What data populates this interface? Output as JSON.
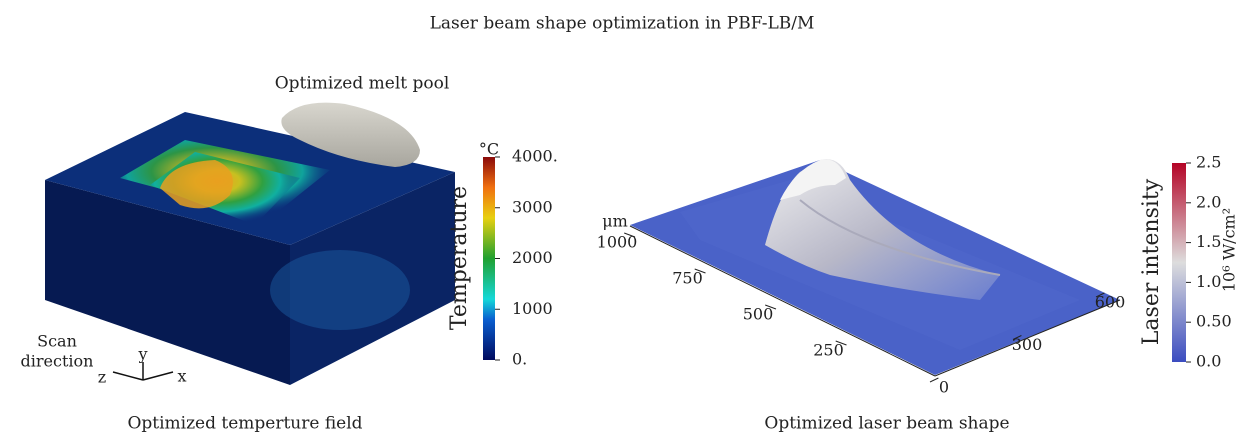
{
  "title": "Laser beam shape optimization in PBF-LB/M",
  "left_panel": {
    "caption": "Optimized temperture field",
    "melt_pool_label": "Optimized melt pool",
    "scan_direction": [
      "Scan",
      "direction"
    ],
    "axes": {
      "x": "x",
      "y": "y",
      "z": "z"
    },
    "colorbar": {
      "title": "Temperature",
      "unit": "°C",
      "range": [
        0,
        4000
      ],
      "ticks": [
        {
          "value": 0,
          "label": "0."
        },
        1000,
        2000,
        3000,
        {
          "value": 4000,
          "label": "4000."
        }
      ]
    }
  },
  "right_panel": {
    "caption": "Optimized laser beam shape",
    "axis_unit": "μm",
    "y_axis": {
      "range": [
        0,
        1000
      ],
      "ticks": [
        250,
        500,
        750,
        1000
      ]
    },
    "x_axis": {
      "range": [
        0,
        600
      ],
      "ticks": [
        0,
        300,
        600
      ]
    },
    "colorbar": {
      "title": "Laser intensity",
      "unit": "10⁶ W/cm²",
      "range": [
        0,
        2.5
      ],
      "ticks": [
        {
          "value": 0,
          "label": "0.0"
        },
        {
          "value": 0.5,
          "label": "0.50"
        },
        {
          "value": 1,
          "label": "1.0"
        },
        1.5,
        {
          "value": 2,
          "label": "2.0"
        },
        2.5
      ]
    }
  }
}
